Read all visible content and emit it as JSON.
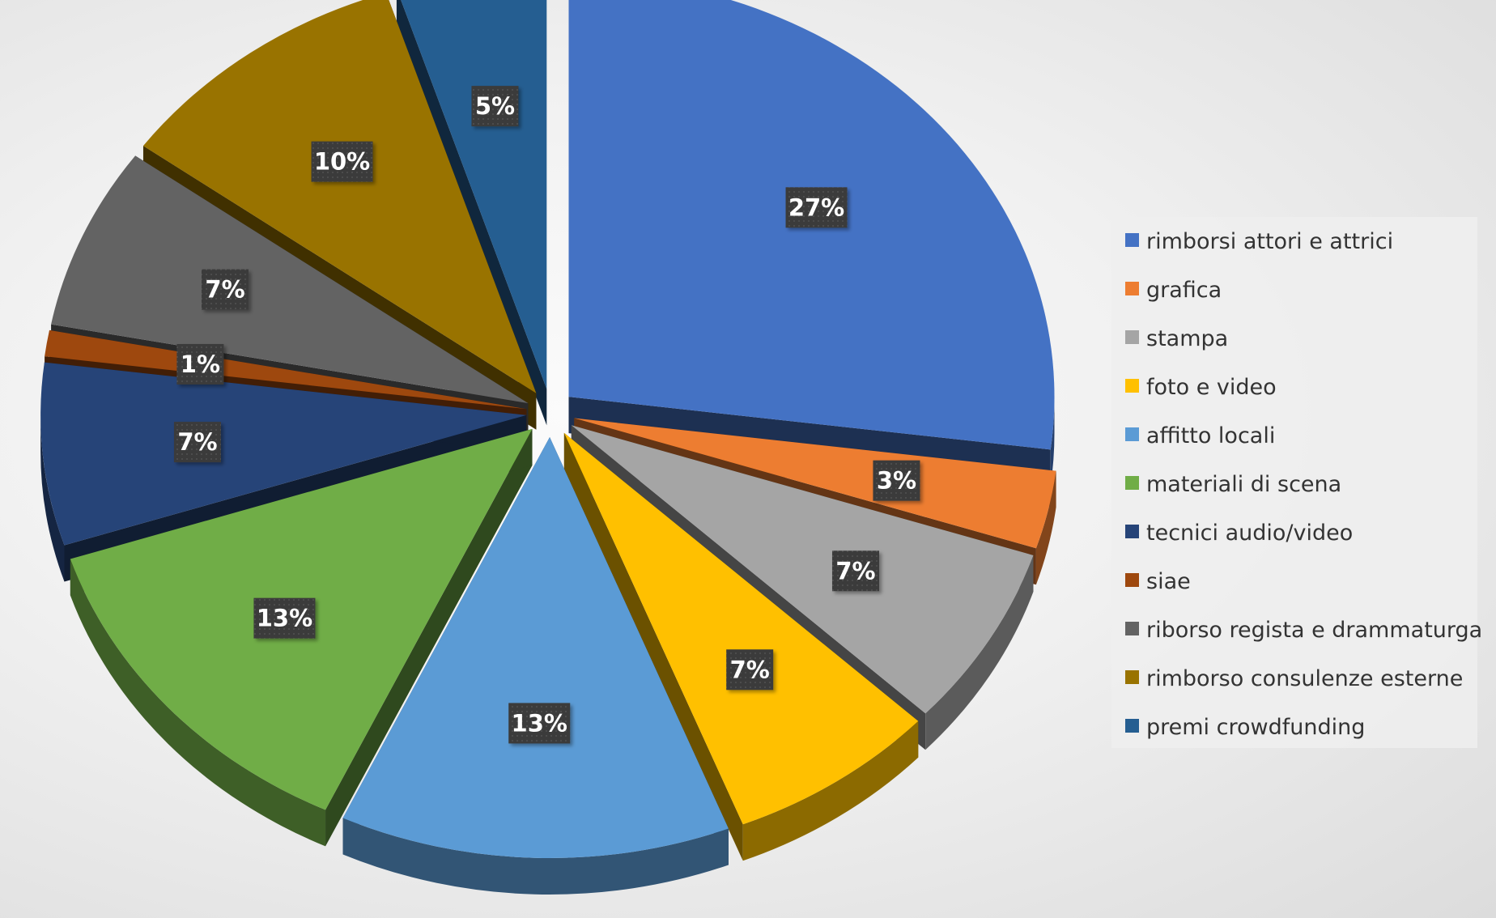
{
  "chart_data": {
    "type": "pie",
    "style": "3d-exploded",
    "categories": [
      "rimborsi attori e attrici",
      "grafica",
      "stampa",
      "foto e video",
      "affitto locali",
      "materiali di scena",
      "tecnici audio/video",
      "siae",
      "riborso regista e drammaturga",
      "rimborso consulenze esterne",
      "premi crowdfunding"
    ],
    "values": [
      27,
      3,
      7,
      7,
      13,
      13,
      7,
      1,
      7,
      10,
      5
    ],
    "labels": [
      "27%",
      "3%",
      "7%",
      "7%",
      "13%",
      "13%",
      "7%",
      "1%",
      "7%",
      "10%",
      "5%"
    ],
    "colors": [
      "#4472C4",
      "#ED7D31",
      "#A5A5A5",
      "#FFC000",
      "#5B9BD5",
      "#70AD47",
      "#264478",
      "#9E480E",
      "#636363",
      "#997300",
      "#255E91"
    ],
    "legend_position": "right",
    "data_labels": "percent"
  }
}
